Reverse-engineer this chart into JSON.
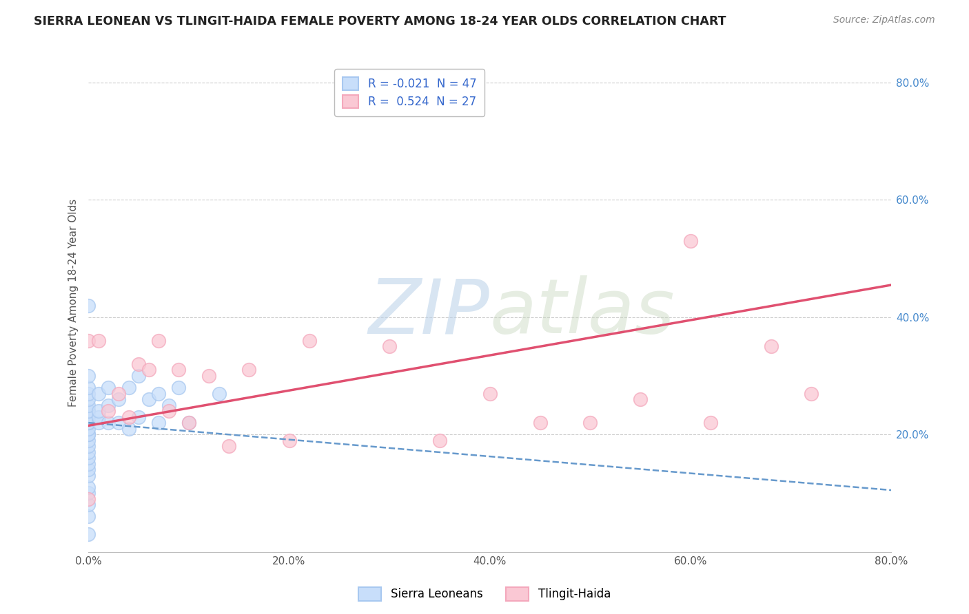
{
  "title": "SIERRA LEONEAN VS TLINGIT-HAIDA FEMALE POVERTY AMONG 18-24 YEAR OLDS CORRELATION CHART",
  "source": "Source: ZipAtlas.com",
  "ylabel": "Female Poverty Among 18-24 Year Olds",
  "xlim": [
    0.0,
    0.8
  ],
  "ylim": [
    0.0,
    0.85
  ],
  "xtick_labels": [
    "0.0%",
    "20.0%",
    "40.0%",
    "60.0%",
    "80.0%"
  ],
  "xtick_vals": [
    0.0,
    0.2,
    0.4,
    0.6,
    0.8
  ],
  "ytick_labels": [
    "20.0%",
    "40.0%",
    "60.0%",
    "80.0%"
  ],
  "ytick_vals": [
    0.2,
    0.4,
    0.6,
    0.8
  ],
  "watermark_zip": "ZIP",
  "watermark_atlas": "atlas",
  "legend_blue_label": "Sierra Leoneans",
  "legend_pink_label": "Tlingit-Haida",
  "blue_R": "-0.021",
  "blue_N": "47",
  "pink_R": "0.524",
  "pink_N": "27",
  "blue_color": "#A8C8F0",
  "pink_color": "#F4A8BC",
  "blue_face_color": "#C8DEFA",
  "pink_face_color": "#FAC8D4",
  "blue_line_color": "#6699CC",
  "pink_line_color": "#E05070",
  "background": "#FFFFFF",
  "grid_color": "#CCCCCC",
  "blue_scatter_x": [
    0.0,
    0.0,
    0.0,
    0.0,
    0.0,
    0.0,
    0.0,
    0.0,
    0.0,
    0.0,
    0.0,
    0.0,
    0.0,
    0.0,
    0.0,
    0.0,
    0.0,
    0.0,
    0.0,
    0.0,
    0.0,
    0.0,
    0.0,
    0.0,
    0.0,
    0.0,
    0.0,
    0.01,
    0.01,
    0.01,
    0.01,
    0.02,
    0.02,
    0.02,
    0.03,
    0.03,
    0.04,
    0.04,
    0.05,
    0.05,
    0.06,
    0.07,
    0.07,
    0.08,
    0.09,
    0.1,
    0.13
  ],
  "blue_scatter_y": [
    0.03,
    0.06,
    0.08,
    0.1,
    0.11,
    0.13,
    0.14,
    0.15,
    0.16,
    0.17,
    0.18,
    0.19,
    0.2,
    0.2,
    0.21,
    0.22,
    0.22,
    0.23,
    0.23,
    0.24,
    0.24,
    0.25,
    0.26,
    0.27,
    0.28,
    0.3,
    0.42,
    0.22,
    0.23,
    0.24,
    0.27,
    0.22,
    0.25,
    0.28,
    0.22,
    0.26,
    0.21,
    0.28,
    0.23,
    0.3,
    0.26,
    0.22,
    0.27,
    0.25,
    0.28,
    0.22,
    0.27
  ],
  "pink_scatter_x": [
    0.0,
    0.0,
    0.01,
    0.02,
    0.03,
    0.04,
    0.05,
    0.06,
    0.07,
    0.08,
    0.09,
    0.1,
    0.12,
    0.14,
    0.16,
    0.2,
    0.22,
    0.3,
    0.35,
    0.4,
    0.45,
    0.5,
    0.55,
    0.6,
    0.62,
    0.68,
    0.72
  ],
  "pink_scatter_y": [
    0.09,
    0.36,
    0.36,
    0.24,
    0.27,
    0.23,
    0.32,
    0.31,
    0.36,
    0.24,
    0.31,
    0.22,
    0.3,
    0.18,
    0.31,
    0.19,
    0.36,
    0.35,
    0.19,
    0.27,
    0.22,
    0.22,
    0.26,
    0.53,
    0.22,
    0.35,
    0.27
  ],
  "blue_line_x": [
    0.0,
    0.8
  ],
  "blue_line_y": [
    0.22,
    0.105
  ],
  "pink_line_x": [
    0.0,
    0.8
  ],
  "pink_line_y": [
    0.215,
    0.455
  ]
}
